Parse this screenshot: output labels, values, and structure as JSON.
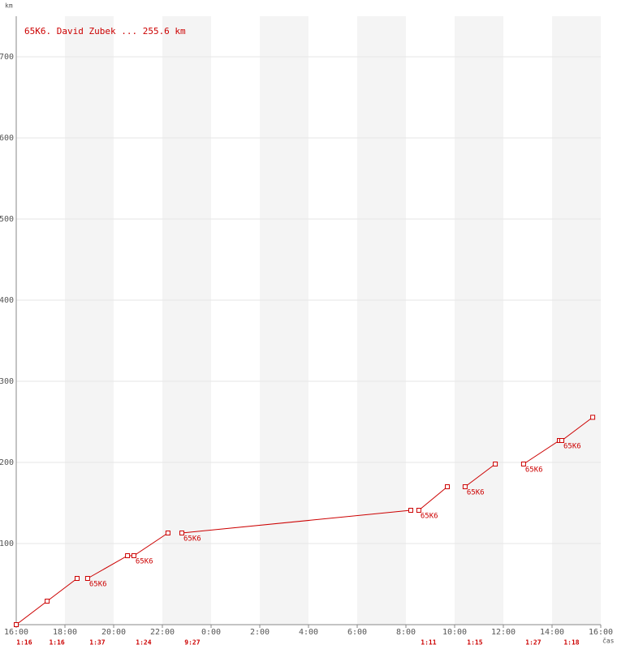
{
  "chart_data": {
    "type": "line",
    "title": "65K6. David Zubek ... 255.6 km",
    "y_label": "km",
    "x_label": "čas",
    "xlim": [
      16,
      40
    ],
    "xticks": [
      {
        "value": 16,
        "label": "16:00"
      },
      {
        "value": 18,
        "label": "18:00"
      },
      {
        "value": 20,
        "label": "20:00"
      },
      {
        "value": 22,
        "label": "22:00"
      },
      {
        "value": 24,
        "label": "0:00"
      },
      {
        "value": 26,
        "label": "2:00"
      },
      {
        "value": 28,
        "label": "4:00"
      },
      {
        "value": 30,
        "label": "6:00"
      },
      {
        "value": 32,
        "label": "8:00"
      },
      {
        "value": 34,
        "label": "10:00"
      },
      {
        "value": 36,
        "label": "12:00"
      },
      {
        "value": 38,
        "label": "14:00"
      },
      {
        "value": 40,
        "label": "16:00"
      }
    ],
    "ylim": [
      0,
      750
    ],
    "yticks": [
      100,
      200,
      300,
      400,
      500,
      600,
      700
    ],
    "grid": true,
    "series": [
      {
        "name": "65K6",
        "color": "#cc0000",
        "x": [
          16.0,
          17.27,
          18.5,
          null,
          18.93,
          20.57,
          20.83,
          22.23,
          null,
          22.8,
          32.2,
          null,
          32.53,
          33.7,
          null,
          34.43,
          35.67,
          null,
          36.83,
          38.3,
          38.4,
          39.67
        ],
        "values": [
          0,
          29,
          57,
          null,
          57,
          85,
          85,
          113,
          null,
          113,
          141,
          null,
          141,
          170,
          null,
          170,
          198,
          null,
          198,
          227,
          227,
          255.6
        ],
        "point_labels": [
          null,
          null,
          null,
          null,
          "65K6",
          null,
          "65K6",
          null,
          null,
          "65K6",
          null,
          null,
          "65K6",
          null,
          null,
          "65K6",
          null,
          null,
          "65K6",
          null,
          "65K6",
          null
        ]
      }
    ],
    "duration_labels": [
      {
        "x": 16.33,
        "label": "1:16"
      },
      {
        "x": 17.67,
        "label": "1:16"
      },
      {
        "x": 19.33,
        "label": "1:37"
      },
      {
        "x": 21.23,
        "label": "1:24"
      },
      {
        "x": 23.23,
        "label": "9:27"
      },
      {
        "x": 32.93,
        "label": "1:11"
      },
      {
        "x": 34.83,
        "label": "1:15"
      },
      {
        "x": 37.23,
        "label": "1:27"
      },
      {
        "x": 38.8,
        "label": "1:18"
      }
    ]
  }
}
